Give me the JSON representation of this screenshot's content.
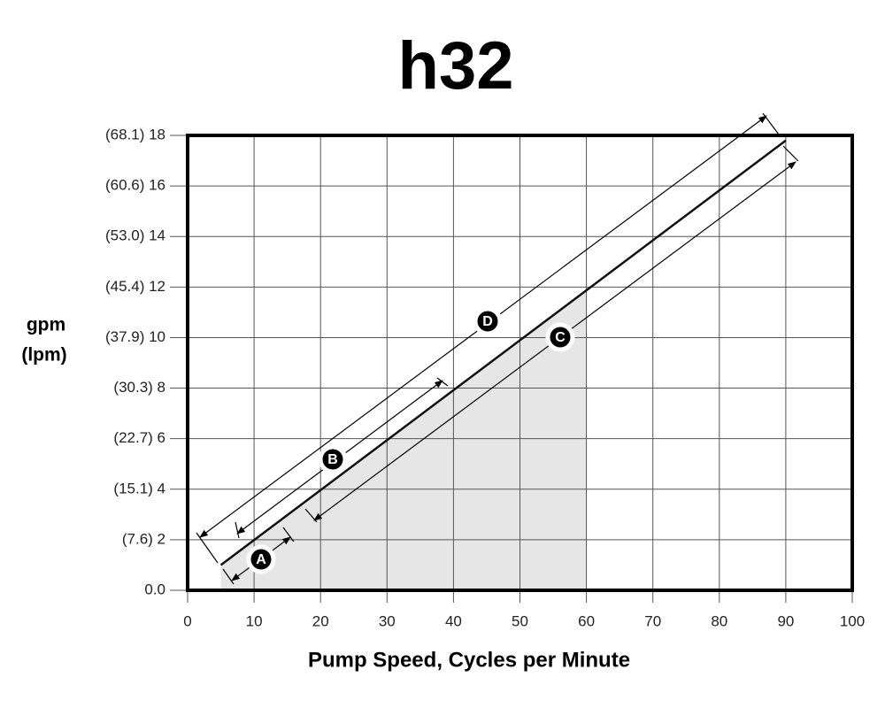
{
  "chart_data": {
    "type": "line",
    "title": "h32",
    "xlabel": "Pump Speed, Cycles per Minute",
    "ylabel": [
      "gpm",
      "(lpm)"
    ],
    "x": [
      5,
      90
    ],
    "series": [
      {
        "color": "#111111",
        "values": [
          1,
          17.8
        ]
      }
    ],
    "shade_x": [
      5,
      60
    ],
    "shade_color": "#e6e6e6",
    "xlim": [
      0,
      100
    ],
    "ylim": [
      0,
      18
    ],
    "xticks": [
      0,
      10,
      20,
      30,
      40,
      50,
      60,
      70,
      80,
      90,
      100
    ],
    "yticks": [
      {
        "value": 0,
        "label": "0.0"
      },
      {
        "value": 2,
        "label": "(7.6) 2"
      },
      {
        "value": 4,
        "label": "(15.1) 4"
      },
      {
        "value": 6,
        "label": "(22.7) 6"
      },
      {
        "value": 8,
        "label": "(30.3) 8"
      },
      {
        "value": 10,
        "label": "(37.9) 10"
      },
      {
        "value": 12,
        "label": "(45.4) 12"
      },
      {
        "value": 14,
        "label": "(53.0) 14"
      },
      {
        "value": 16,
        "label": "(60.6) 16"
      },
      {
        "value": 18,
        "label": "(68.1) 18"
      }
    ],
    "grid": true,
    "annotations": [
      "A",
      "B",
      "C",
      "D"
    ]
  }
}
